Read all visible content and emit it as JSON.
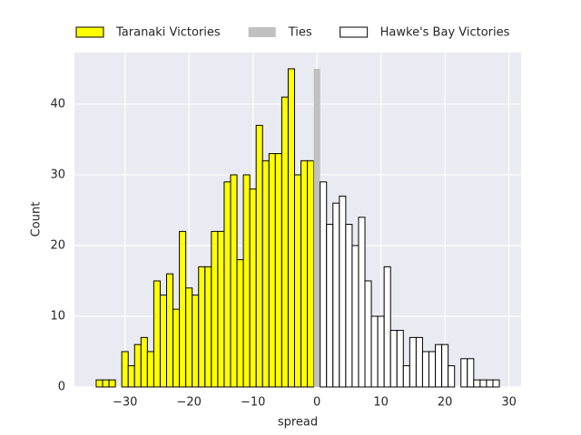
{
  "chart_data": {
    "type": "histogram",
    "xlabel": "spread",
    "ylabel": "Count",
    "xlim": [
      -37.9,
      31.9
    ],
    "ylim": [
      0,
      47.3
    ],
    "xticks": [
      {
        "value": -30,
        "label": "−30"
      },
      {
        "value": -20,
        "label": "−20"
      },
      {
        "value": -10,
        "label": "−10"
      },
      0,
      10,
      20,
      30
    ],
    "yticks": [
      0,
      10,
      20,
      30,
      40
    ],
    "grid": true,
    "legend": "top",
    "series": [
      {
        "name": "Taranaki Victories",
        "color": "#ffff00",
        "edgecolor": "#000000",
        "bins": [
          -34.5,
          -33.5,
          -32.5,
          -31.5,
          -30.5,
          -29.5,
          -28.5,
          -27.5,
          -26.5,
          -25.5,
          -24.5,
          -23.5,
          -22.5,
          -21.5,
          -20.5,
          -19.5,
          -18.5,
          -17.5,
          -16.5,
          -15.5,
          -14.5,
          -13.5,
          -12.5,
          -11.5,
          -10.5,
          -9.5,
          -8.5,
          -7.5,
          -6.5,
          -5.5,
          -4.5,
          -3.5,
          -2.5,
          -1.5,
          -0.5
        ],
        "values": [
          1,
          1,
          1,
          0,
          5,
          3,
          6,
          7,
          5,
          15,
          13,
          16,
          11,
          22,
          14,
          13,
          17,
          17,
          22,
          22,
          29,
          30,
          18,
          30,
          28,
          37,
          32,
          33,
          33,
          41,
          45,
          30,
          32,
          32
        ]
      },
      {
        "name": "Ties",
        "color": "#c0c0c0",
        "bins": [
          -0.5,
          0.5
        ],
        "values": [
          45
        ]
      },
      {
        "name": "Hawke's Bay Victories",
        "color": "#ffffff",
        "edgecolor": "#000000",
        "bins": [
          0.5,
          1.5,
          2.5,
          3.5,
          4.5,
          5.5,
          6.5,
          7.5,
          8.5,
          9.5,
          10.5,
          11.5,
          12.5,
          13.5,
          14.5,
          15.5,
          16.5,
          17.5,
          18.5,
          19.5,
          20.5,
          21.5,
          22.5,
          23.5,
          24.5,
          25.5,
          26.5,
          27.5,
          28.5
        ],
        "values": [
          29,
          23,
          26,
          27,
          23,
          20,
          24,
          15,
          10,
          10,
          17,
          8,
          8,
          3,
          7,
          7,
          5,
          5,
          6,
          6,
          3,
          0,
          4,
          4,
          1,
          1,
          1,
          1
        ]
      }
    ]
  }
}
